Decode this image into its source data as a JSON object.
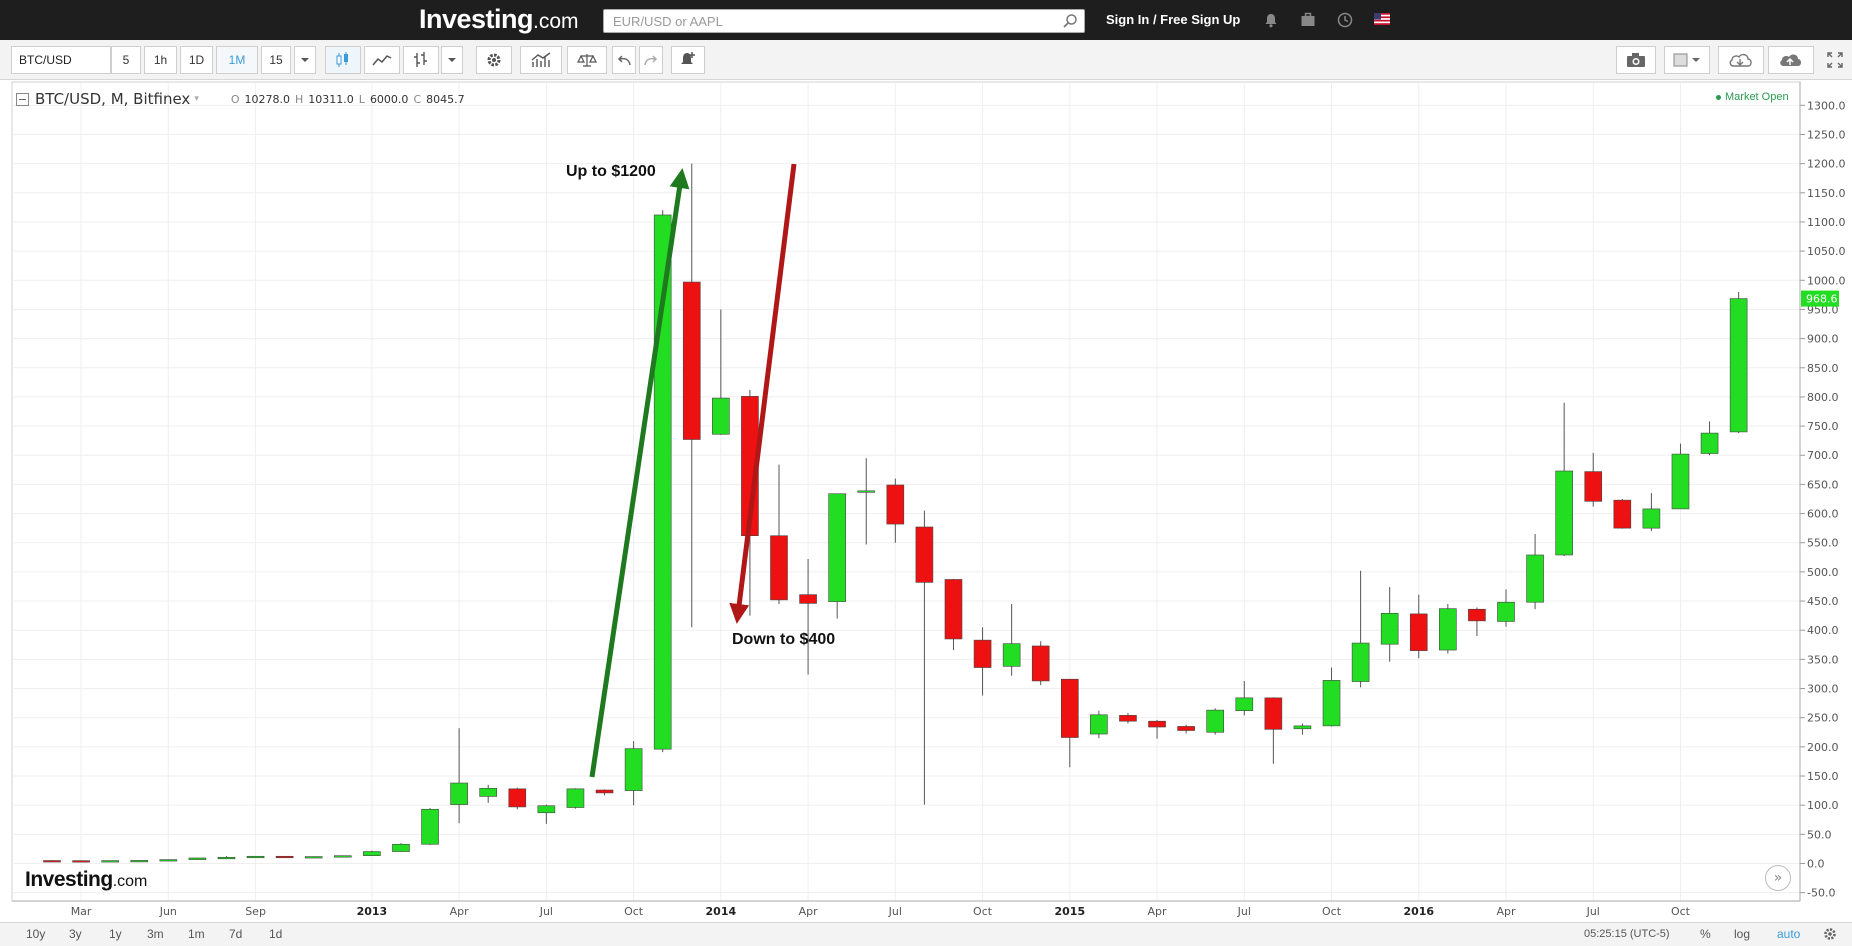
{
  "header": {
    "logo_main": "Investing",
    "logo_suffix": ".com",
    "search_placeholder": "EUR/USD or AAPL",
    "signin_label": "Sign In / Free Sign Up",
    "icons": [
      "bell-icon",
      "briefcase-icon",
      "clock-icon",
      "us-flag-icon"
    ]
  },
  "toolbar": {
    "symbol": "BTC/USD",
    "intervals": [
      "5",
      "1h",
      "1D",
      "1M",
      "15"
    ],
    "active_interval": "1M",
    "icons": [
      "candles-icon",
      "line-chart-icon",
      "bar-type-icon",
      "dropdown-icon",
      "settings-icon",
      "indicators-icon",
      "compare-icon",
      "undo-icon",
      "redo-icon",
      "alert-icon",
      "camera-icon",
      "layout-icon",
      "cloud-load-icon",
      "cloud-save-icon",
      "fullscreen-icon"
    ]
  },
  "legend": {
    "symbol": "BTC/USD, M, Bitfinex",
    "o_label": "O",
    "o_value": "10278.0",
    "h_label": "H",
    "h_value": "10311.0",
    "l_label": "L",
    "l_value": "6000.0",
    "c_label": "C",
    "c_value": "8045.7",
    "market_status": "Market Open"
  },
  "annotations": {
    "up_label": "Up to $1200",
    "down_label": "Down to $400",
    "up_color": "#1f7a1f",
    "down_color": "#b01818"
  },
  "chart_logo": {
    "main": "Investing",
    "suffix": ".com"
  },
  "colors": {
    "up": "#22dd22",
    "down": "#ee1111",
    "last_price_bg": "#22dd22"
  },
  "chart_data": {
    "type": "candlestick",
    "ylim": [
      -50,
      1300
    ],
    "y_ticks": [
      -50,
      0,
      50,
      100,
      150,
      200,
      250,
      300,
      350,
      400,
      450,
      500,
      550,
      600,
      650,
      700,
      750,
      800,
      850,
      900,
      950,
      1000,
      1050,
      1100,
      1150,
      1200,
      1250,
      1300
    ],
    "y_tick_labels": [
      "-50.0",
      "0.0",
      "50.0",
      "100.0",
      "150.0",
      "200.0",
      "250.0",
      "300.0",
      "350.0",
      "400.0",
      "450.0",
      "500.0",
      "550.0",
      "600.0",
      "650.0",
      "700.0",
      "750.0",
      "800.0",
      "850.0",
      "900.0",
      "950.0",
      "1000.0",
      "1050.0",
      "1100.0",
      "1150.0",
      "1200.0",
      "1250.0",
      "1300.0"
    ],
    "x_labels": [
      {
        "i": 1,
        "label": "Mar"
      },
      {
        "i": 4,
        "label": "Jun"
      },
      {
        "i": 7,
        "label": "Sep"
      },
      {
        "i": 11,
        "label": "2013",
        "bold": true
      },
      {
        "i": 14,
        "label": "Apr"
      },
      {
        "i": 17,
        "label": "Jul"
      },
      {
        "i": 20,
        "label": "Oct"
      },
      {
        "i": 23,
        "label": "2014",
        "bold": true
      },
      {
        "i": 26,
        "label": "Apr"
      },
      {
        "i": 29,
        "label": "Jul"
      },
      {
        "i": 32,
        "label": "Oct"
      },
      {
        "i": 35,
        "label": "2015",
        "bold": true
      },
      {
        "i": 38,
        "label": "Apr"
      },
      {
        "i": 41,
        "label": "Jul"
      },
      {
        "i": 44,
        "label": "Oct"
      },
      {
        "i": 47,
        "label": "2016",
        "bold": true
      },
      {
        "i": 50,
        "label": "Apr"
      },
      {
        "i": 53,
        "label": "Jul"
      },
      {
        "i": 56,
        "label": "Oct"
      }
    ],
    "candles": [
      {
        "o": 5.1,
        "h": 5.7,
        "l": 4.4,
        "c": 4.9
      },
      {
        "o": 4.9,
        "h": 5.4,
        "l": 4.3,
        "c": 4.7
      },
      {
        "o": 4.7,
        "h": 5.3,
        "l": 4.2,
        "c": 5.0
      },
      {
        "o": 5.0,
        "h": 5.8,
        "l": 4.6,
        "c": 5.3
      },
      {
        "o": 5.3,
        "h": 7.0,
        "l": 5.1,
        "c": 6.7
      },
      {
        "o": 6.7,
        "h": 9.8,
        "l": 6.5,
        "c": 9.5
      },
      {
        "o": 9.5,
        "h": 12.8,
        "l": 9.0,
        "c": 10.6
      },
      {
        "o": 10.6,
        "h": 12.9,
        "l": 10.0,
        "c": 12.4
      },
      {
        "o": 12.4,
        "h": 12.8,
        "l": 10.0,
        "c": 11.0
      },
      {
        "o": 11.0,
        "h": 12.2,
        "l": 10.5,
        "c": 11.9
      },
      {
        "o": 11.9,
        "h": 13.8,
        "l": 11.5,
        "c": 13.4
      },
      {
        "o": 13.4,
        "h": 22.0,
        "l": 13.1,
        "c": 20.5
      },
      {
        "o": 20.5,
        "h": 35.0,
        "l": 20.0,
        "c": 33.0
      },
      {
        "o": 33.0,
        "h": 95.0,
        "l": 32.0,
        "c": 93.0
      },
      {
        "o": 101,
        "h": 232,
        "l": 69,
        "c": 138
      },
      {
        "o": 115,
        "h": 135,
        "l": 104,
        "c": 129
      },
      {
        "o": 128,
        "h": 130,
        "l": 93,
        "c": 97
      },
      {
        "o": 87,
        "h": 101,
        "l": 68,
        "c": 99
      },
      {
        "o": 96,
        "h": 129,
        "l": 94,
        "c": 128
      },
      {
        "o": 126,
        "h": 127,
        "l": 117,
        "c": 121
      },
      {
        "o": 125,
        "h": 210,
        "l": 100,
        "c": 197
      },
      {
        "o": 196,
        "h": 1120,
        "l": 191,
        "c": 1112
      },
      {
        "o": 997,
        "h": 1200,
        "l": 405,
        "c": 727
      },
      {
        "o": 736,
        "h": 950,
        "l": 735,
        "c": 798
      },
      {
        "o": 801,
        "h": 812,
        "l": 425,
        "c": 562
      },
      {
        "o": 562,
        "h": 684,
        "l": 445,
        "c": 452
      },
      {
        "o": 461,
        "h": 522,
        "l": 324,
        "c": 446
      },
      {
        "o": 449,
        "h": 633,
        "l": 420,
        "c": 634
      },
      {
        "o": 637,
        "h": 695,
        "l": 547,
        "c": 639
      },
      {
        "o": 649,
        "h": 660,
        "l": 550,
        "c": 582
      },
      {
        "o": 577,
        "h": 605,
        "l": 101,
        "c": 482
      },
      {
        "o": 487,
        "h": 488,
        "l": 366,
        "c": 385
      },
      {
        "o": 383,
        "h": 405,
        "l": 288,
        "c": 336
      },
      {
        "o": 338,
        "h": 445,
        "l": 322,
        "c": 377
      },
      {
        "o": 373,
        "h": 381,
        "l": 306,
        "c": 313
      },
      {
        "o": 316,
        "h": 316,
        "l": 165,
        "c": 216
      },
      {
        "o": 222,
        "h": 262,
        "l": 215,
        "c": 255
      },
      {
        "o": 254,
        "h": 258,
        "l": 240,
        "c": 244
      },
      {
        "o": 244,
        "h": 246,
        "l": 214,
        "c": 234
      },
      {
        "o": 235,
        "h": 238,
        "l": 223,
        "c": 228
      },
      {
        "o": 225,
        "h": 266,
        "l": 221,
        "c": 263
      },
      {
        "o": 262,
        "h": 313,
        "l": 254,
        "c": 284
      },
      {
        "o": 284,
        "h": 285,
        "l": 171,
        "c": 230
      },
      {
        "o": 231,
        "h": 240,
        "l": 221,
        "c": 236
      },
      {
        "o": 236,
        "h": 336,
        "l": 235,
        "c": 314
      },
      {
        "o": 312,
        "h": 502,
        "l": 302,
        "c": 378
      },
      {
        "o": 376,
        "h": 474,
        "l": 346,
        "c": 429
      },
      {
        "o": 428,
        "h": 461,
        "l": 352,
        "c": 365
      },
      {
        "o": 366,
        "h": 445,
        "l": 360,
        "c": 437
      },
      {
        "o": 436,
        "h": 439,
        "l": 390,
        "c": 416
      },
      {
        "o": 415,
        "h": 470,
        "l": 406,
        "c": 448
      },
      {
        "o": 448,
        "h": 565,
        "l": 436,
        "c": 529
      },
      {
        "o": 529,
        "h": 790,
        "l": 527,
        "c": 673
      },
      {
        "o": 672,
        "h": 704,
        "l": 612,
        "c": 621
      },
      {
        "o": 623,
        "h": 625,
        "l": 574,
        "c": 575
      },
      {
        "o": 575,
        "h": 635,
        "l": 570,
        "c": 608
      },
      {
        "o": 608,
        "h": 720,
        "l": 608,
        "c": 702
      },
      {
        "o": 703,
        "h": 758,
        "l": 700,
        "c": 738
      },
      {
        "o": 740,
        "h": 980,
        "l": 738,
        "c": 968.6
      }
    ],
    "last_price_label": "968.6"
  },
  "bottom_bar": {
    "ranges": [
      "10y",
      "3y",
      "1y",
      "3m",
      "1m",
      "7d",
      "1d"
    ],
    "time": "05:25:15 (UTC-5)",
    "pct_label": "%",
    "log_label": "log",
    "auto_label": "auto"
  }
}
